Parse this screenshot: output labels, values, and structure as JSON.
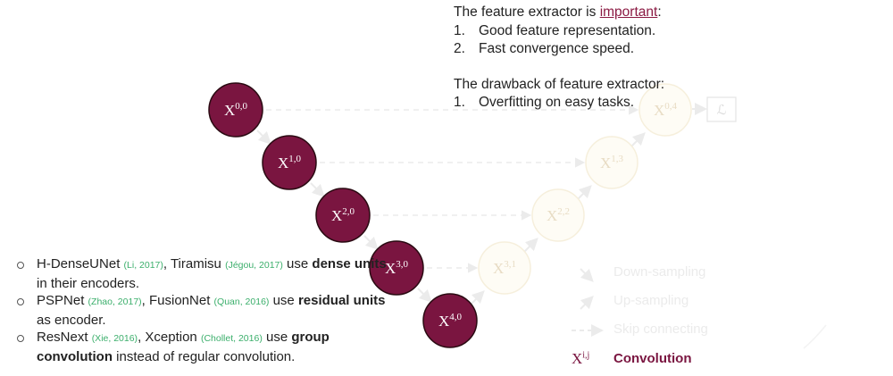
{
  "top_text": {
    "intro_prefix": "The feature extractor is ",
    "intro_highlight": "important",
    "intro_suffix": ":",
    "points": [
      {
        "num": "1.",
        "text": "Good feature representation."
      },
      {
        "num": "2.",
        "text": "Fast convergence speed."
      }
    ],
    "drawback_title": "The drawback of feature extractor:",
    "drawbacks": [
      {
        "num": "1.",
        "text": "Overfitting on easy tasks."
      }
    ]
  },
  "nodes": {
    "active": [
      {
        "base": "X",
        "sup": "0,0"
      },
      {
        "base": "X",
        "sup": "1,0"
      },
      {
        "base": "X",
        "sup": "2,0"
      },
      {
        "base": "X",
        "sup": "3,0"
      },
      {
        "base": "X",
        "sup": "4,0"
      }
    ],
    "faded": [
      {
        "base": "X",
        "sup": "3,1"
      },
      {
        "base": "X",
        "sup": "2,2"
      },
      {
        "base": "X",
        "sup": "1,3"
      },
      {
        "base": "X",
        "sup": "0,4"
      }
    ],
    "loss_symbol": "ℒ"
  },
  "bullets": [
    {
      "parts": [
        {
          "t": "H-DenseUNet ",
          "style": "normal"
        },
        {
          "t": "(Li, 2017)",
          "style": "cite"
        },
        {
          "t": ", Tiramisu ",
          "style": "normal"
        },
        {
          "t": "(Jégou, 2017)",
          "style": "cite"
        },
        {
          "t": " use ",
          "style": "normal"
        },
        {
          "t": "dense units",
          "style": "bold"
        },
        {
          "t": " in their encoders.",
          "style": "normal"
        }
      ]
    },
    {
      "parts": [
        {
          "t": "PSPNet ",
          "style": "normal"
        },
        {
          "t": "(Zhao, 2017)",
          "style": "cite"
        },
        {
          "t": ", FusionNet ",
          "style": "normal"
        },
        {
          "t": "(Quan, 2016)",
          "style": "cite"
        },
        {
          "t": " use ",
          "style": "normal"
        },
        {
          "t": "residual units",
          "style": "bold"
        },
        {
          "t": " as encoder.",
          "style": "normal"
        }
      ]
    },
    {
      "parts": [
        {
          "t": "ResNext ",
          "style": "normal"
        },
        {
          "t": "(Xie, 2016)",
          "style": "cite"
        },
        {
          "t": ", Xception ",
          "style": "normal"
        },
        {
          "t": "(Chollet, 2016)",
          "style": "cite"
        },
        {
          "t": " use ",
          "style": "normal"
        },
        {
          "t": "group convolution",
          "style": "bold"
        },
        {
          "t": " instead of regular convolution.",
          "style": "normal"
        }
      ]
    }
  ],
  "legend": {
    "down_sampling": "Down-sampling",
    "up_sampling": "Up-sampling",
    "skip_connecting": "Skip connecting",
    "convolution_symbol": "X",
    "convolution_sup": "i,j",
    "convolution": "Convolution"
  },
  "colors": {
    "node": "#7a1540",
    "node_stroke": "#2a0a12",
    "faded_node": "#fefcf5",
    "faded_stroke": "#f6efdc",
    "arrow": "#ebebeb",
    "citation": "#3caf6c"
  }
}
